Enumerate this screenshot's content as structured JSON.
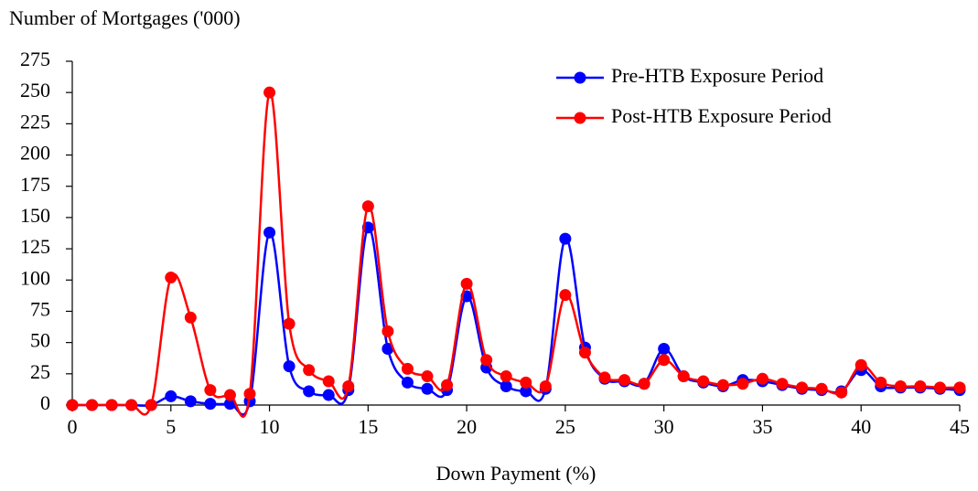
{
  "chart_data": {
    "type": "line",
    "y_label": "Number of Mortgages ('000)",
    "x_label": "Down Payment (%)",
    "x": [
      0,
      1,
      2,
      3,
      4,
      5,
      6,
      7,
      8,
      9,
      10,
      11,
      12,
      13,
      14,
      15,
      16,
      17,
      18,
      19,
      20,
      21,
      22,
      23,
      24,
      25,
      26,
      27,
      28,
      29,
      30,
      31,
      32,
      33,
      34,
      35,
      36,
      37,
      38,
      39,
      40,
      41,
      42,
      43,
      44,
      45
    ],
    "series": [
      {
        "name": "Pre-HTB Exposure Period",
        "color": "#0000ff",
        "values": [
          0,
          0,
          0,
          0,
          0,
          7,
          3,
          1,
          1,
          3,
          138,
          31,
          11,
          8,
          12,
          142,
          45,
          18,
          13,
          12,
          87,
          30,
          15,
          11,
          13,
          133,
          46,
          21,
          19,
          17,
          45,
          23,
          18,
          15,
          20,
          19,
          16,
          13,
          12,
          11,
          28,
          15,
          14,
          14,
          13,
          12
        ]
      },
      {
        "name": "Post-HTB Exposure Period",
        "color": "#ff0000",
        "values": [
          0,
          0,
          0,
          0,
          0,
          102,
          70,
          12,
          8,
          9,
          250,
          65,
          28,
          19,
          15,
          159,
          59,
          29,
          23,
          16,
          97,
          36,
          23,
          18,
          15,
          88,
          42,
          22,
          20,
          17,
          36,
          23,
          19,
          16,
          17,
          21,
          17,
          14,
          13,
          10,
          32,
          18,
          15,
          15,
          14,
          14
        ]
      }
    ],
    "xlim": [
      0,
      45
    ],
    "xticks": [
      0,
      5,
      10,
      15,
      20,
      25,
      30,
      35,
      40,
      45
    ],
    "ylim": [
      0,
      275
    ],
    "yticks": [
      0,
      25,
      50,
      75,
      100,
      125,
      150,
      175,
      200,
      225,
      250,
      275
    ],
    "grid": false,
    "legend": "upper right",
    "smooth": true
  }
}
